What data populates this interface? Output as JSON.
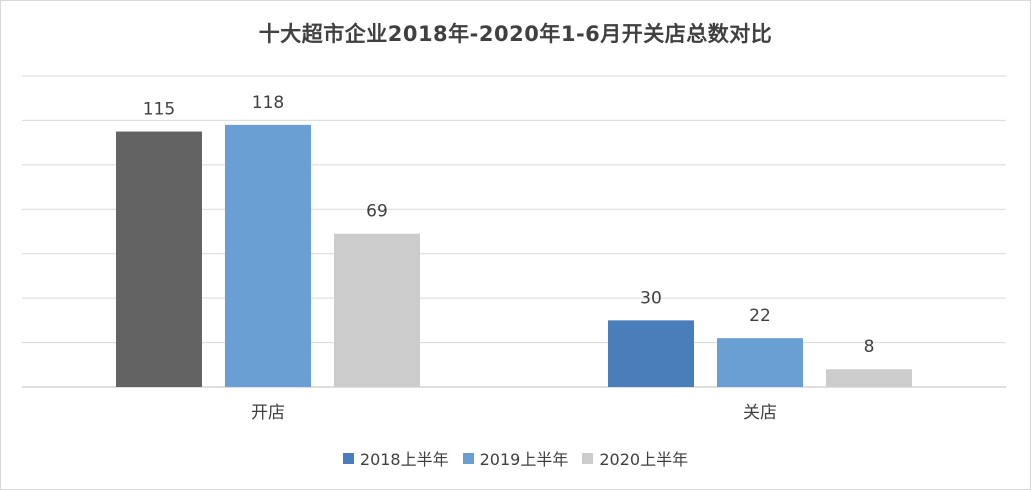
{
  "chart_data": {
    "type": "bar",
    "title": "十大超市企业2018年-2020年1-6月开关店总数对比",
    "categories": [
      "开店",
      "关店"
    ],
    "series": [
      {
        "name": "2018上半年",
        "values": [
          115,
          30
        ],
        "colors": [
          "#636363",
          "#4a7ebb"
        ]
      },
      {
        "name": "2019上半年",
        "values": [
          118,
          22
        ],
        "colors": [
          "#6a9fd4",
          "#6a9fd4"
        ]
      },
      {
        "name": "2020上半年",
        "values": [
          69,
          8
        ],
        "colors": [
          "#cccccc",
          "#cccccc"
        ]
      }
    ],
    "legend_colors": [
      "#4a7ebb",
      "#6a9fd4",
      "#cccccc"
    ],
    "ylim": [
      0,
      140
    ],
    "grid": true,
    "legend_position": "bottom",
    "data_labels": true
  }
}
